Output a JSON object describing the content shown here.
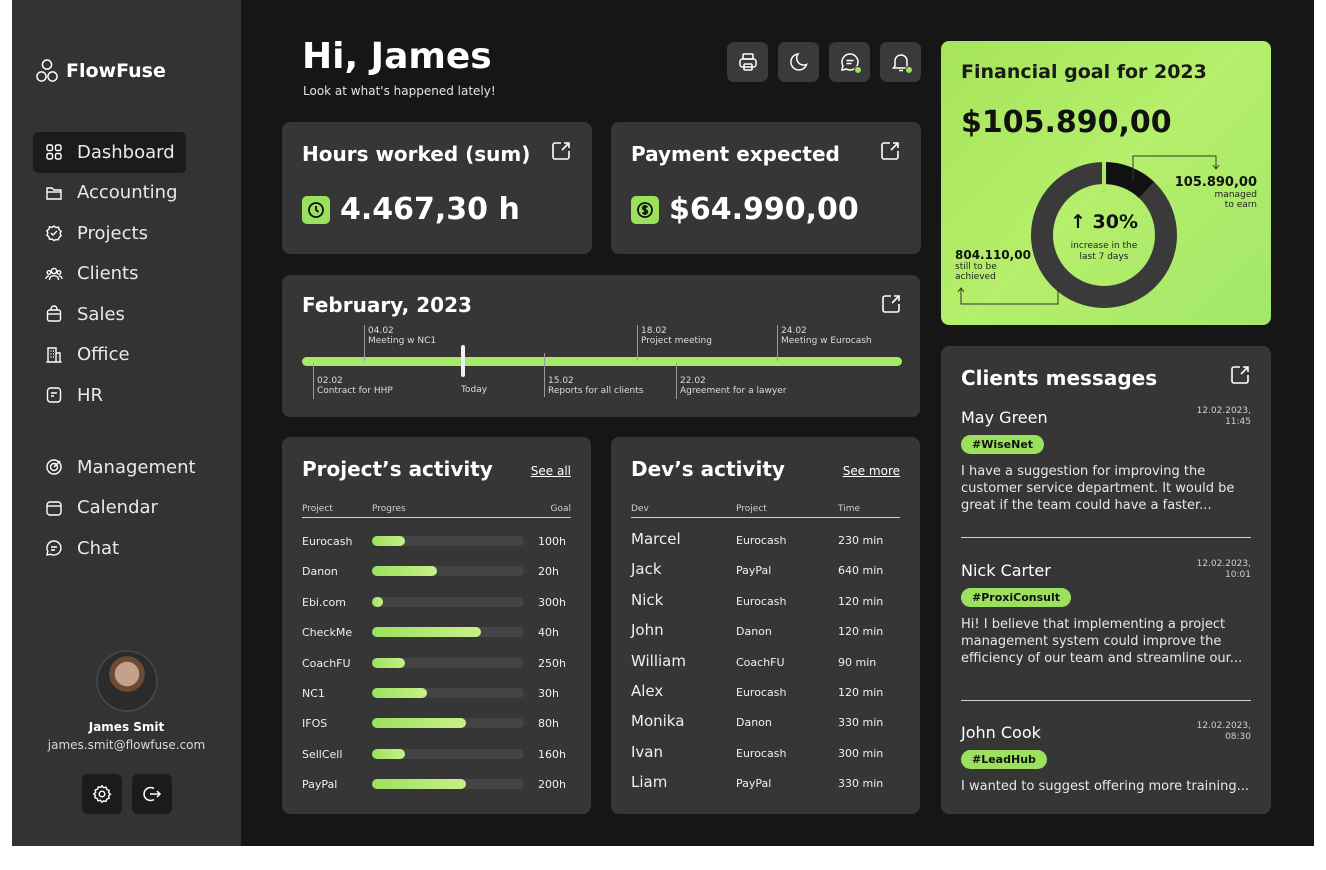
{
  "app": {
    "name": "FlowFuse"
  },
  "nav": {
    "primary": [
      {
        "label": "Dashboard",
        "icon": "grid-icon",
        "active": true
      },
      {
        "label": "Accounting",
        "icon": "folder-icon"
      },
      {
        "label": "Projects",
        "icon": "badge-check-icon"
      },
      {
        "label": "Clients",
        "icon": "users-icon"
      },
      {
        "label": "Sales",
        "icon": "bag-icon"
      },
      {
        "label": "Office",
        "icon": "building-icon"
      },
      {
        "label": "HR",
        "icon": "id-card-icon"
      }
    ],
    "secondary": [
      {
        "label": "Management",
        "icon": "target-icon"
      },
      {
        "label": "Calendar",
        "icon": "calendar-icon"
      },
      {
        "label": "Chat",
        "icon": "chat-icon"
      }
    ]
  },
  "user": {
    "name": "James Smit",
    "email": "james.smit@flowfuse.com"
  },
  "header": {
    "greeting": "Hi, James",
    "subtitle": "Look at what's happened lately!"
  },
  "stats": {
    "hours": {
      "title": "Hours worked (sum)",
      "value": "4.467,30 h"
    },
    "payment": {
      "title": "Payment expected",
      "value": "$64.990,00"
    }
  },
  "timeline": {
    "title": "February, 2023",
    "today_label": "Today",
    "events_top": [
      {
        "date": "04.02",
        "text": "Meeting w NC1"
      },
      {
        "date": "18.02",
        "text": "Project meeting"
      },
      {
        "date": "24.02",
        "text": "Meeting w Eurocash"
      }
    ],
    "events_bottom": [
      {
        "date": "02.02",
        "text": "Contract for HHP"
      },
      {
        "date": "15.02",
        "text": "Reports for all clients"
      },
      {
        "date": "22.02",
        "text": "Agreement for a lawyer"
      }
    ]
  },
  "project_activity": {
    "title": "Project’s activity",
    "link": "See all",
    "columns": [
      "Project",
      "Progres",
      "Goal"
    ],
    "rows": [
      {
        "project": "Eurocash",
        "progress": 0.22,
        "goal": "100h"
      },
      {
        "project": "Danon",
        "progress": 0.43,
        "goal": "20h"
      },
      {
        "project": "Ebi.com",
        "progress": 0.07,
        "goal": "300h"
      },
      {
        "project": "CheckMe",
        "progress": 0.72,
        "goal": "40h"
      },
      {
        "project": "CoachFU",
        "progress": 0.22,
        "goal": "250h"
      },
      {
        "project": "NC1",
        "progress": 0.36,
        "goal": "30h"
      },
      {
        "project": "IFOS",
        "progress": 0.62,
        "goal": "80h"
      },
      {
        "project": "SellCell",
        "progress": 0.22,
        "goal": "160h"
      },
      {
        "project": "PayPal",
        "progress": 0.62,
        "goal": "200h"
      }
    ]
  },
  "dev_activity": {
    "title": "Dev’s activity",
    "link": "See more",
    "columns": [
      "Dev",
      "Project",
      "Time"
    ],
    "rows": [
      {
        "dev": "Marcel",
        "project": "Eurocash",
        "time": "230 min"
      },
      {
        "dev": "Jack",
        "project": "PayPal",
        "time": "640 min"
      },
      {
        "dev": "Nick",
        "project": "Eurocash",
        "time": "120 min"
      },
      {
        "dev": "John",
        "project": "Danon",
        "time": "120 min"
      },
      {
        "dev": "William",
        "project": "CoachFU",
        "time": "90 min"
      },
      {
        "dev": "Alex",
        "project": "Eurocash",
        "time": "120 min"
      },
      {
        "dev": "Monika",
        "project": "Danon",
        "time": "330 min"
      },
      {
        "dev": "Ivan",
        "project": "Eurocash",
        "time": "300 min"
      },
      {
        "dev": "Liam",
        "project": "PayPal",
        "time": "330 min"
      }
    ]
  },
  "goal": {
    "title": "Financial goal for 2023",
    "amount": "$105.890,00",
    "percent": "↑ 30%",
    "percent_sub": [
      "increase in the",
      "last 7 days"
    ],
    "managed_value": "105.890,00",
    "managed_sub": [
      "managed",
      "to earn"
    ],
    "remaining_value": "804.110,00",
    "remaining_sub": [
      "still to be",
      "achieved"
    ],
    "achieved_fraction": 0.12
  },
  "messages": {
    "title": "Clients messages",
    "items": [
      {
        "name": "May Green",
        "date": "12.02.2023,",
        "time": "11:45",
        "tag": "#WiseNet",
        "text": "I have a suggestion for improving the customer service department. It would be great if the team could have a faster..."
      },
      {
        "name": "Nick Carter",
        "date": "12.02.2023,",
        "time": "10:01",
        "tag": "#ProxiConsult",
        "text": "Hi! I believe that implementing a project management system could improve the efficiency of our team and streamline our..."
      },
      {
        "name": "John Cook",
        "date": "12.02.2023,",
        "time": "08:30",
        "tag": "#LeadHub",
        "text": "I wanted to suggest offering more training..."
      }
    ]
  },
  "colors": {
    "accent": "#9be15d",
    "background": "#161616",
    "card": "#363636",
    "sidebar": "#333333"
  }
}
